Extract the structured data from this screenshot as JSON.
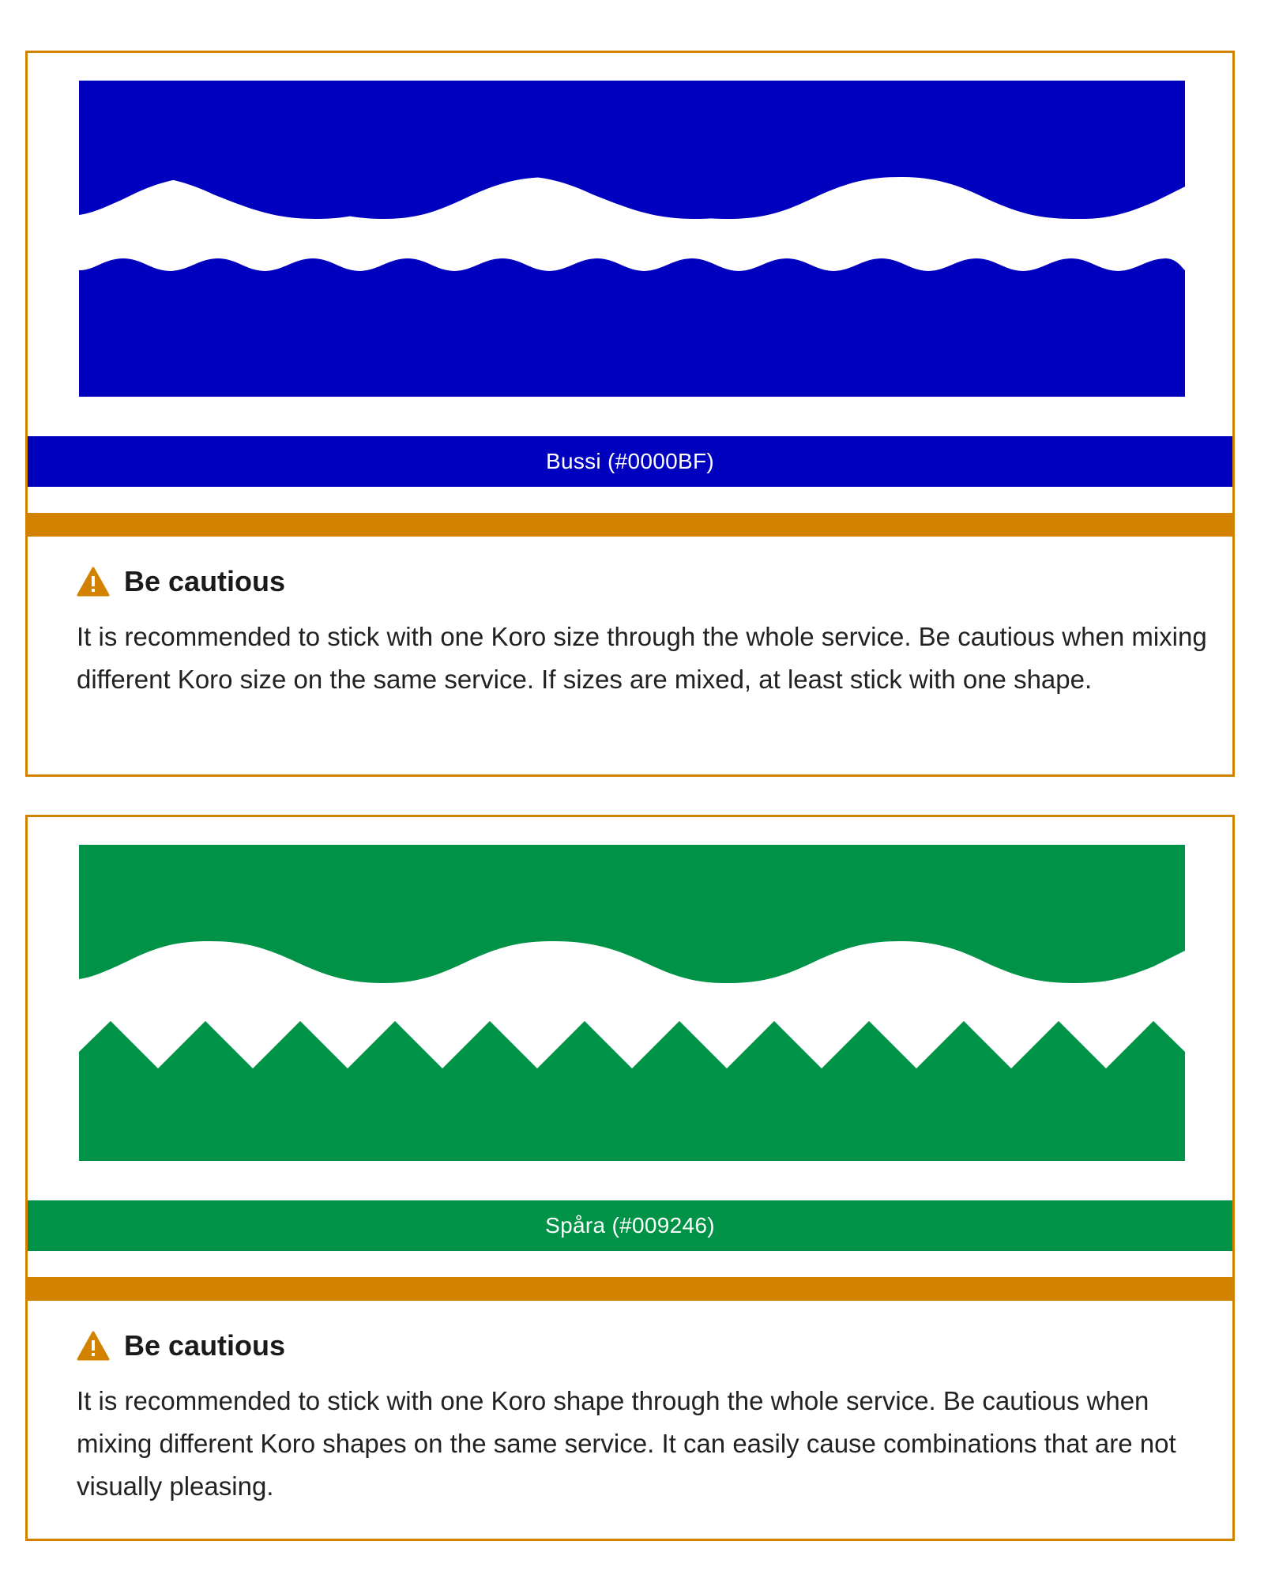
{
  "colors": {
    "border": "#d38200",
    "bussi": "#0000BF",
    "spara": "#009246",
    "warning": "#d38200"
  },
  "examples": [
    {
      "color_label": "Bussi (#0000BF)",
      "top_shape": "wave-large",
      "bottom_shape": "wave-small",
      "warning": {
        "icon": "warning-triangle-icon",
        "title": "Be cautious",
        "text": "It is recommended to stick with one Koro size through the whole service. Be cautious when mixing different Koro size on the same service. If sizes are mixed, at least stick with one shape."
      }
    },
    {
      "color_label": "Spåra (#009246)",
      "top_shape": "wave-large",
      "bottom_shape": "zigzag",
      "warning": {
        "icon": "warning-triangle-icon",
        "title": "Be cautious",
        "text": "It is recommended to stick with one Koro shape through the whole service. Be cautious when mixing different Koro shapes on the same service. It can easily cause combinations that are not visually pleasing."
      }
    }
  ]
}
